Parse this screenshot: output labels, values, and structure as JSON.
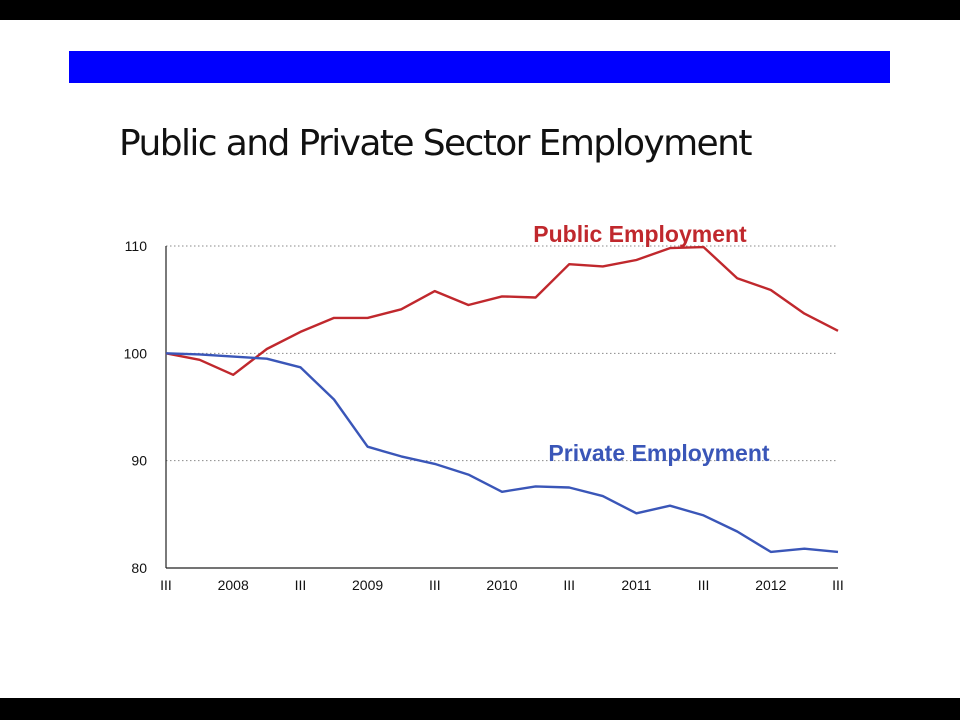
{
  "slide": {
    "title": "Public and Private Sector Employment",
    "accent_color": "#0000ff",
    "background": "#ffffff"
  },
  "chart_data": {
    "type": "line",
    "title": "",
    "xlabel": "",
    "ylabel": "",
    "ylim": [
      80,
      110
    ],
    "yticks": [
      80,
      90,
      100,
      110
    ],
    "ytick_labels": [
      "80",
      "90",
      "100",
      "110"
    ],
    "grid": "horizontal dotted",
    "x_tick_labels": [
      "III",
      "2008",
      "III",
      "2009",
      "III",
      "2010",
      "III",
      "2011",
      "III",
      "2012",
      "III"
    ],
    "x_tick_quarter_index": [
      0,
      2,
      4,
      6,
      8,
      10,
      12,
      14,
      16,
      18,
      20
    ],
    "x_quarter_index": [
      0,
      1,
      2,
      3,
      4,
      5,
      6,
      7,
      8,
      9,
      10,
      11,
      12,
      13,
      14,
      15,
      16,
      17,
      18,
      19,
      20
    ],
    "series": [
      {
        "name": "Public Employment",
        "color": "#c0282d",
        "values": [
          100,
          99.4,
          98,
          100.4,
          102,
          103.3,
          103.3,
          104.1,
          105.8,
          104.5,
          105.3,
          105.2,
          108.3,
          108.1,
          108.7,
          109.8,
          109.9,
          107,
          105.9,
          103.7,
          102.1
        ]
      },
      {
        "name": "Private Employment",
        "color": "#3a56b8",
        "values": [
          100,
          99.9,
          99.7,
          99.5,
          98.7,
          95.7,
          91.3,
          90.4,
          89.7,
          88.7,
          87.1,
          87.6,
          87.5,
          86.7,
          85.1,
          85.8,
          84.9,
          83.4,
          81.5,
          81.8,
          81.5
        ]
      }
    ]
  }
}
